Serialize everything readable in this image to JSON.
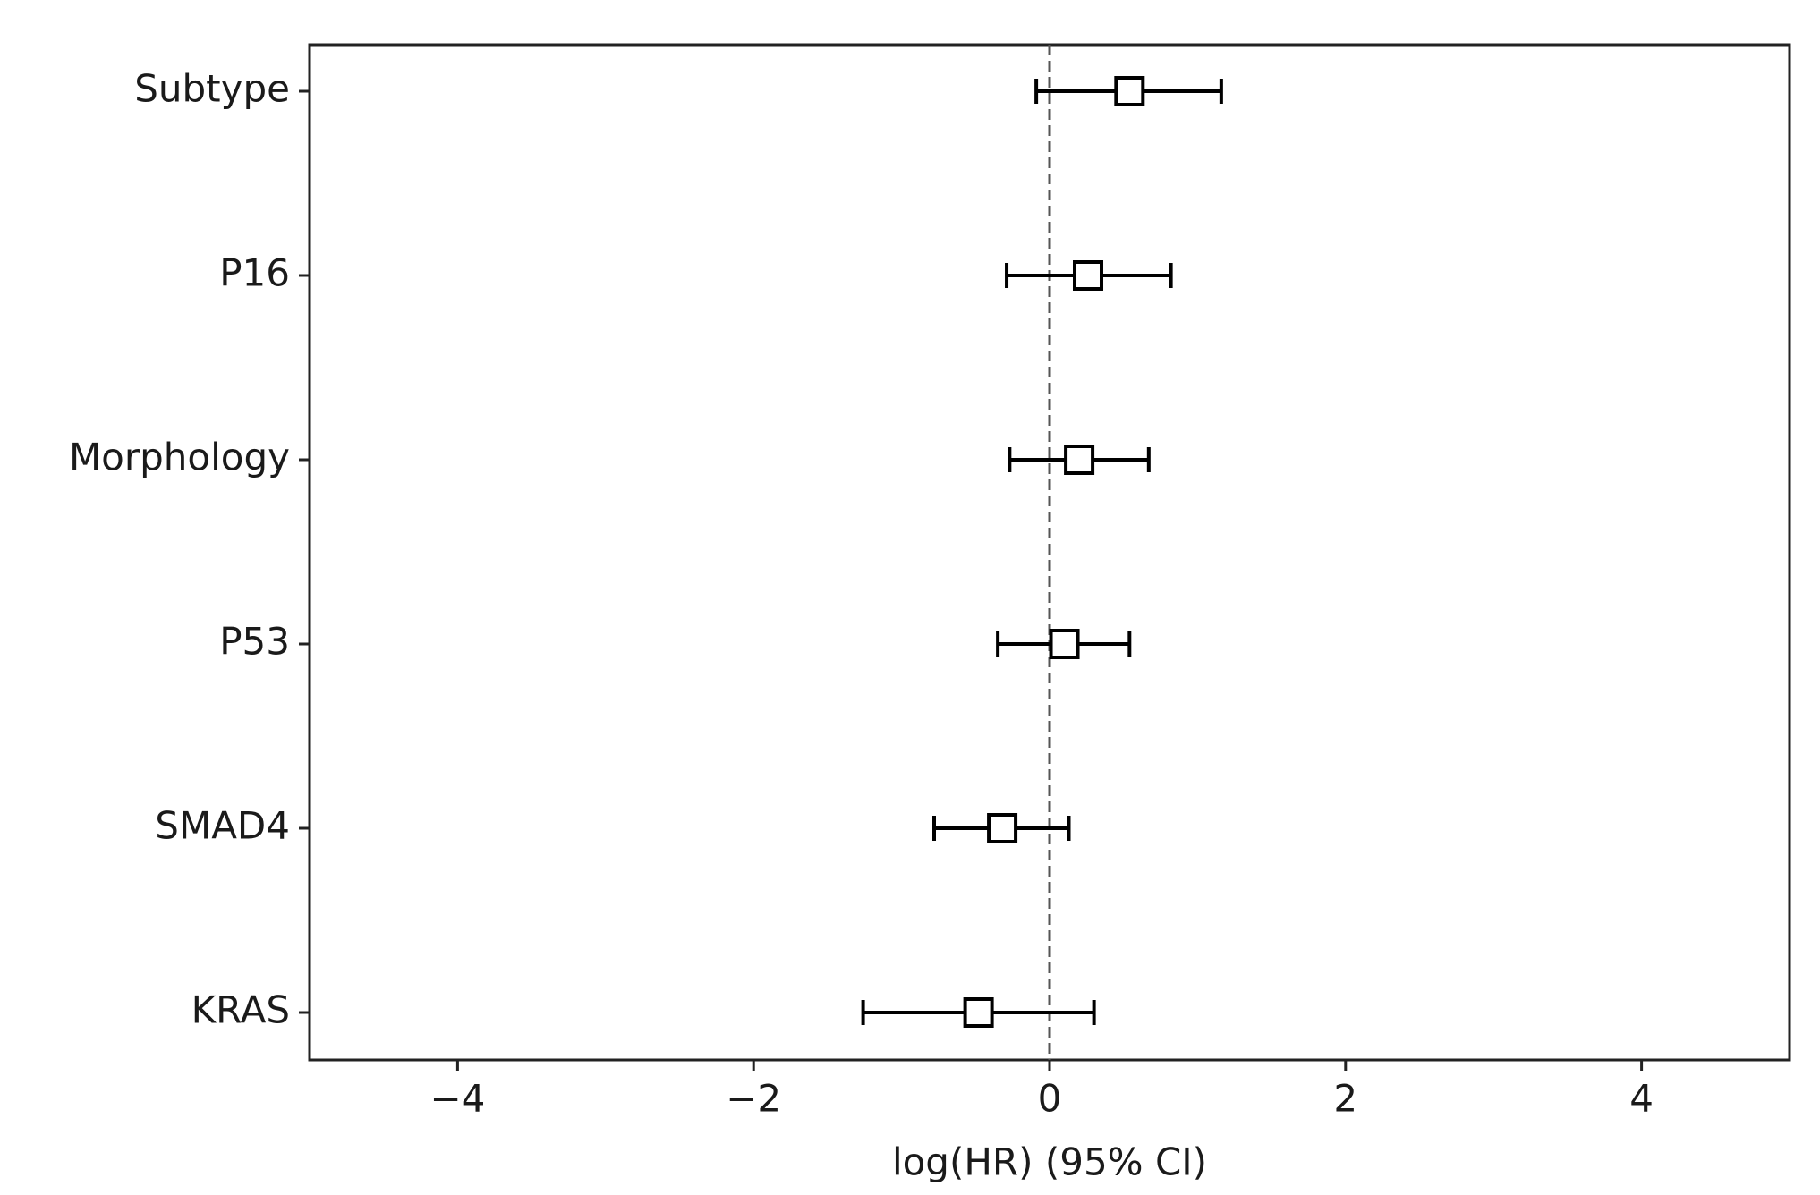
{
  "chart_data": {
    "type": "forest",
    "xlabel": "log(HR) (95% CI)",
    "categories": [
      "Subtype",
      "P16",
      "Morphology",
      "P53",
      "SMAD4",
      "KRAS"
    ],
    "values": [
      0.54,
      0.26,
      0.2,
      0.1,
      -0.32,
      -0.48
    ],
    "lower": [
      -0.09,
      -0.29,
      -0.27,
      -0.35,
      -0.78,
      -1.26
    ],
    "upper": [
      1.16,
      0.82,
      0.67,
      0.54,
      0.13,
      0.3
    ],
    "color": "#000000",
    "xlim": [
      -5,
      5
    ],
    "xticks": [
      {
        "value": -4,
        "label": "−4"
      },
      {
        "value": -2,
        "label": "−2"
      },
      0,
      2,
      4
    ],
    "reference_line": 0
  }
}
